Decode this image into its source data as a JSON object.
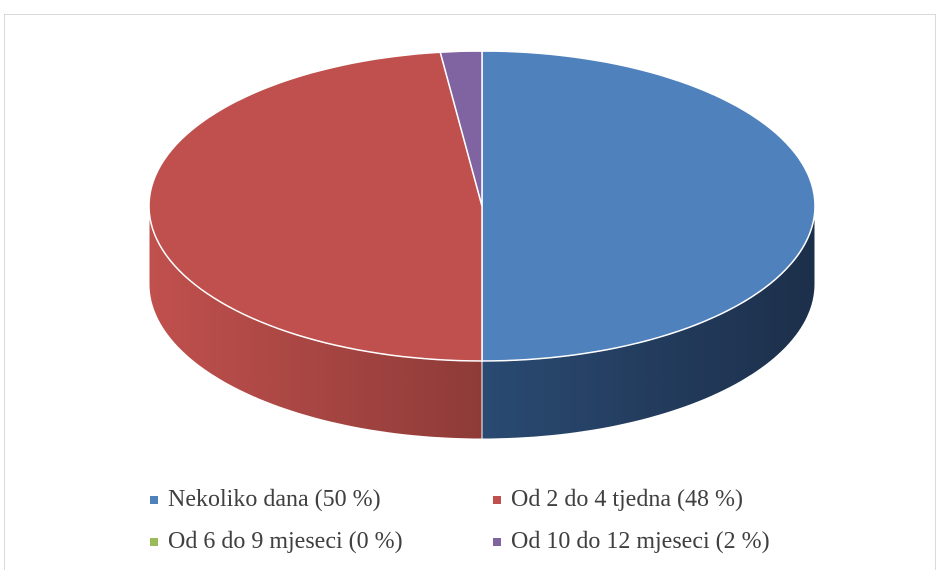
{
  "chart_data": {
    "type": "pie",
    "style": "3d",
    "title": "",
    "legend_position": "bottom",
    "slices": [
      {
        "label": "Nekoliko dana (50 %)",
        "value": 50,
        "color": "#4F81BD",
        "side_color": "#2A4A72"
      },
      {
        "label": "Od 2 do 4 tjedna (48 %)",
        "value": 48,
        "color": "#C0504D",
        "side_color": "#8E3B38"
      },
      {
        "label": "Od 6 do 9 mjeseci (0 %)",
        "value": 0,
        "color": "#9BBB59",
        "side_color": "#6F8A3E"
      },
      {
        "label": "Od 10 do 12 mjeseci (2 %)",
        "value": 2,
        "color": "#8064A2",
        "side_color": "#5B4775"
      }
    ]
  }
}
